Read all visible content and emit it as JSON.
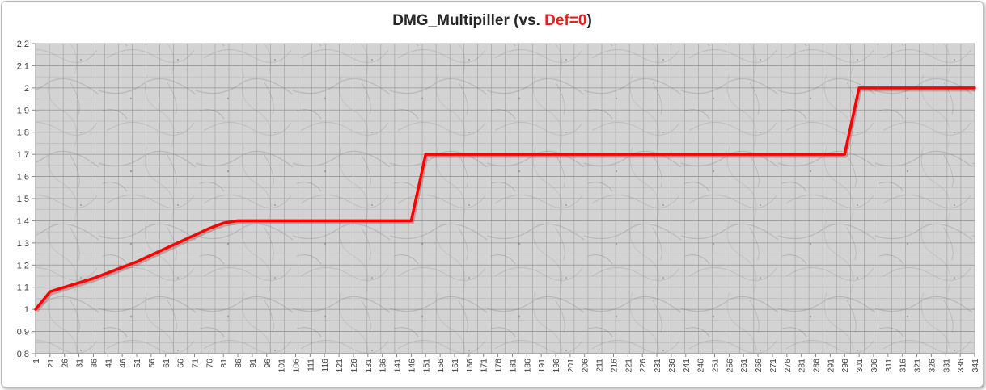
{
  "chart_data": {
    "type": "line",
    "title_prefix": "DMG_Multipiller (vs. ",
    "title_highlight": "Def=0",
    "title_suffix": ")",
    "xlabel": "",
    "ylabel": "",
    "ylim": [
      0.8,
      2.2
    ],
    "ystep": 0.1,
    "decimal_separator": ",",
    "grid": true,
    "legend": "none",
    "xlim": [
      1,
      341
    ],
    "x_tick_labels": [
      1,
      21,
      26,
      31,
      36,
      41,
      46,
      51,
      56,
      61,
      66,
      71,
      76,
      81,
      86,
      91,
      96,
      101,
      106,
      111,
      116,
      121,
      126,
      131,
      136,
      141,
      146,
      151,
      156,
      161,
      166,
      171,
      176,
      181,
      186,
      191,
      196,
      201,
      206,
      211,
      216,
      221,
      226,
      231,
      236,
      241,
      246,
      251,
      256,
      261,
      266,
      271,
      276,
      281,
      286,
      291,
      296,
      301,
      306,
      311,
      316,
      321,
      326,
      331,
      336,
      341
    ],
    "series": [
      {
        "color": "#ff0000",
        "x": [
          1,
          21,
          26,
          31,
          36,
          41,
          46,
          51,
          56,
          61,
          66,
          71,
          76,
          81,
          86,
          91,
          96,
          101,
          106,
          111,
          116,
          121,
          126,
          131,
          136,
          141,
          146,
          151,
          156,
          161,
          166,
          171,
          176,
          181,
          186,
          191,
          196,
          201,
          206,
          211,
          216,
          221,
          226,
          231,
          236,
          241,
          246,
          251,
          256,
          261,
          266,
          271,
          276,
          281,
          286,
          291,
          296,
          301,
          306,
          311,
          316,
          321,
          326,
          331,
          336,
          341
        ],
        "y": [
          1.0,
          1.08,
          1.1,
          1.12,
          1.14,
          1.165,
          1.19,
          1.215,
          1.245,
          1.275,
          1.305,
          1.335,
          1.365,
          1.39,
          1.4,
          1.4,
          1.4,
          1.4,
          1.4,
          1.4,
          1.4,
          1.4,
          1.4,
          1.4,
          1.4,
          1.4,
          1.4,
          1.7,
          1.7,
          1.7,
          1.7,
          1.7,
          1.7,
          1.7,
          1.7,
          1.7,
          1.7,
          1.7,
          1.7,
          1.7,
          1.7,
          1.7,
          1.7,
          1.7,
          1.7,
          1.7,
          1.7,
          1.7,
          1.7,
          1.7,
          1.7,
          1.7,
          1.7,
          1.7,
          1.7,
          1.7,
          1.7,
          2.0,
          2.0,
          2.0,
          2.0,
          2.0,
          2.0,
          2.0,
          2.0,
          2.0
        ]
      }
    ]
  }
}
